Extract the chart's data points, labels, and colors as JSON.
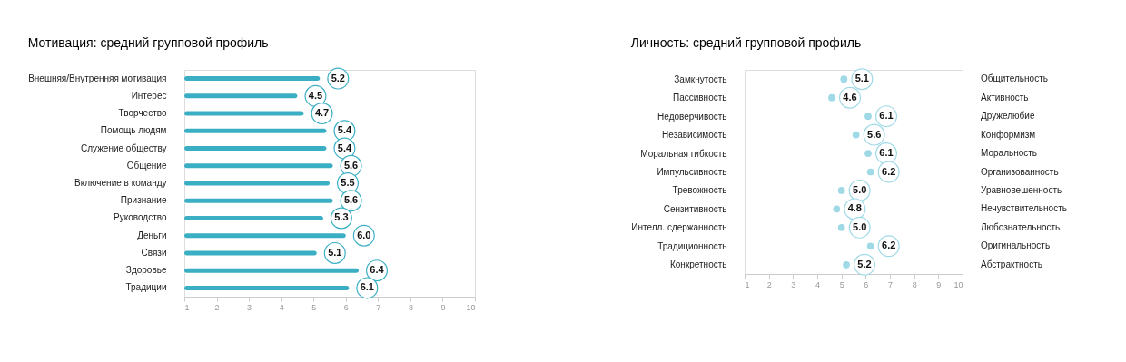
{
  "chart_data": [
    {
      "type": "bar",
      "orientation": "horizontal",
      "title": "Мотивация: средний групповой профиль",
      "categories": [
        "Внешняя/Внутренняя мотивация",
        "Интерес",
        "Творчество",
        "Помощь людям",
        "Служение обществу",
        "Общение",
        "Включение в команду",
        "Признание",
        "Руководство",
        "Деньги",
        "Связи",
        "Здоровье",
        "Традиции"
      ],
      "values": [
        5.2,
        4.5,
        4.7,
        5.4,
        5.4,
        5.6,
        5.5,
        5.6,
        5.3,
        6.0,
        5.1,
        6.4,
        6.1
      ],
      "value_labels": [
        "5.2",
        "4.5",
        "4.7",
        "5.4",
        "5.4",
        "5.6",
        "5.5",
        "5.6",
        "5.3",
        "6.0",
        "5.1",
        "6.4",
        "6.1"
      ],
      "color": "#3aafc4",
      "xlim": [
        1,
        10
      ],
      "xticks": [
        1,
        2,
        3,
        4,
        5,
        6,
        7,
        8,
        9,
        10
      ],
      "grid": false
    },
    {
      "type": "scatter",
      "title": "Личность: средний групповой профиль",
      "categories": [
        "Замкнутость",
        "Пассивность",
        "Недоверчивость",
        "Независимость",
        "Моральная гибкость",
        "Импульсивность",
        "Тревожность",
        "Сензитивность",
        "Интелл. сдержанность",
        "Традиционность",
        "Конкретность"
      ],
      "y2_categories": [
        "Общительность",
        "Активность",
        "Дружелюбие",
        "Конформизм",
        "Моральность",
        "Организованность",
        "Уравновешенность",
        "Нечувствительность",
        "Любознательность",
        "Оригинальность",
        "Абстрактность"
      ],
      "values": [
        5.1,
        4.6,
        6.1,
        5.6,
        6.1,
        6.2,
        5.0,
        4.8,
        5.0,
        6.2,
        5.2
      ],
      "value_labels": [
        "5.1",
        "4.6",
        "6.1",
        "5.6",
        "6.1",
        "6.2",
        "5.0",
        "4.8",
        "5.0",
        "6.2",
        "5.2"
      ],
      "orientation": "horizontal",
      "color": "#9fd9e6",
      "xlim": [
        1,
        10
      ],
      "xticks": [
        1,
        2,
        3,
        4,
        5,
        6,
        7,
        8,
        9,
        10
      ],
      "marker": "circle",
      "grid": false
    }
  ]
}
